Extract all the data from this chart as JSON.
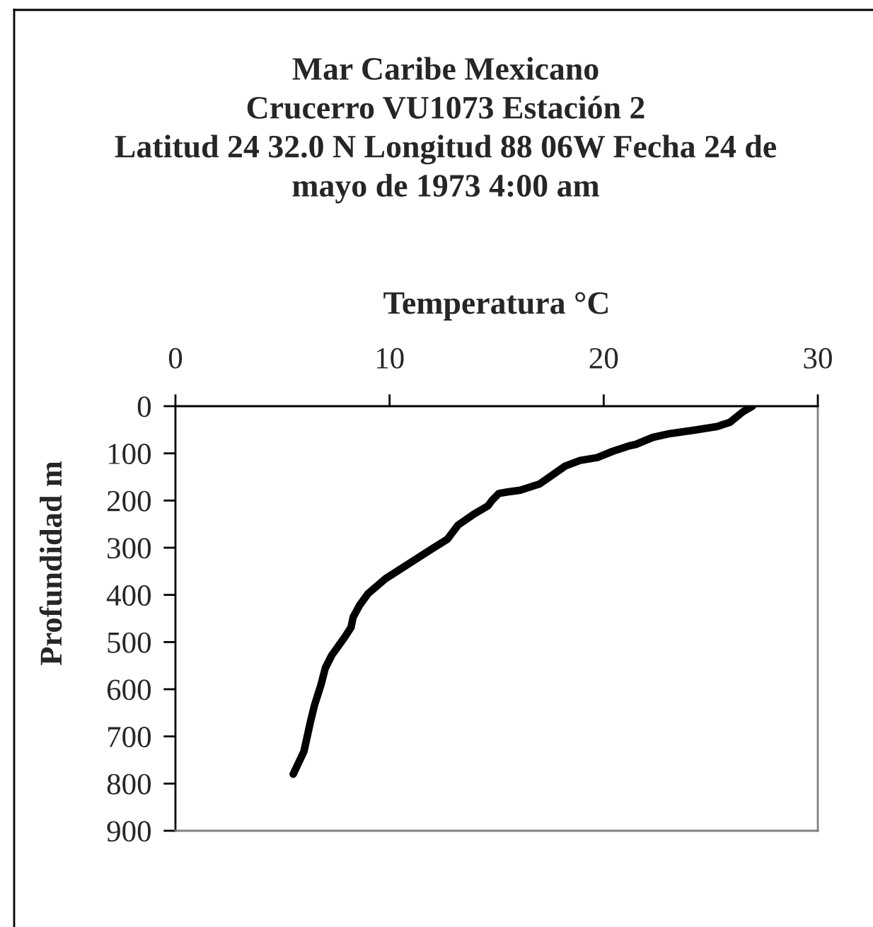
{
  "chart_data": {
    "type": "line",
    "title": "Mar Caribe Mexicano\nCrucerro VU1073 Estación 2\nLatitud 24 32.0 N Longitud 88 06W Fecha 24 de\nmayo de 1973 4:00 am",
    "xlabel": "Temperatura °C",
    "ylabel": "Profundidad m",
    "xlim": [
      0,
      30
    ],
    "xticks": [
      0,
      10,
      20,
      30
    ],
    "ylim": [
      900,
      0
    ],
    "yticks": [
      0,
      100,
      200,
      300,
      400,
      500,
      600,
      700,
      800,
      900
    ],
    "line_style": "solid",
    "series": [
      {
        "color": "#000000",
        "x": [
          26.95,
          26.5,
          25.9,
          25.3,
          24.2,
          23.1,
          22.3,
          21.5,
          21.2,
          20.4,
          19.7,
          18.9,
          18.2,
          17.6,
          17.0,
          16.1,
          15.5,
          15.1,
          14.8,
          14.6,
          13.9,
          13.2,
          12.7,
          12.0,
          11.2,
          9.8,
          9.0,
          8.6,
          8.3,
          8.2,
          7.9,
          7.3,
          7.0,
          6.8,
          6.5,
          6.3,
          6.0,
          5.5
        ],
        "values": [
          0,
          12,
          34,
          43,
          51,
          58,
          66,
          81,
          84,
          96,
          109,
          115,
          127,
          146,
          165,
          178,
          182,
          185,
          199,
          211,
          230,
          252,
          282,
          302,
          325,
          366,
          397,
          422,
          447,
          469,
          490,
          528,
          555,
          590,
          633,
          670,
          732,
          780
        ]
      }
    ]
  }
}
